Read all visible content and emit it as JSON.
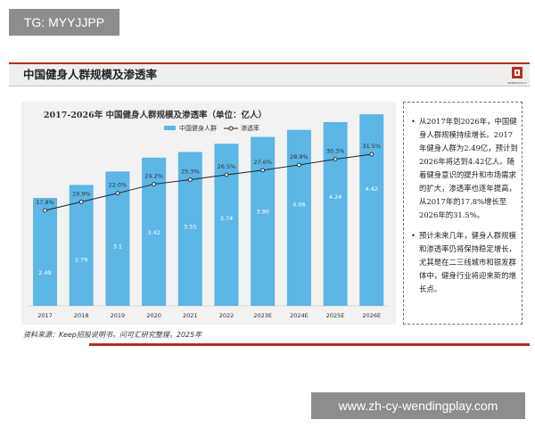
{
  "watermark_top": "TG: MYYJJPP",
  "watermark_bottom": "www.zh-cy-wendingplay.com",
  "header": {
    "title": "中国健身人群规模及渗透率"
  },
  "logo": {
    "icon": "company-logo-icon",
    "text": "WENDINGPLAY"
  },
  "colors": {
    "accent": "#b32f1f",
    "bar": "#5cb6e6",
    "line": "#222222",
    "panel": "#f2f2f2"
  },
  "chart_data": {
    "type": "bar",
    "title": "2017-2026年 中国健身人群规模及渗透率（单位：亿人）",
    "categories": [
      "2017",
      "2018",
      "2019",
      "2020",
      "2021",
      "2022",
      "2023E",
      "2024E",
      "2025E",
      "2026E"
    ],
    "series": [
      {
        "name": "中国健身人群",
        "type": "bar",
        "values": [
          2.49,
          2.79,
          3.1,
          3.42,
          3.55,
          3.74,
          3.9,
          4.06,
          4.24,
          4.42
        ],
        "labels": [
          "2.49",
          "2.79",
          "3.1",
          "3.42",
          "3.55",
          "3.74",
          "3.90",
          "4.06",
          "4.24",
          "4.42"
        ]
      },
      {
        "name": "渗透率",
        "type": "line",
        "values": [
          17.8,
          19.9,
          22.0,
          24.2,
          25.3,
          26.5,
          27.6,
          28.9,
          30.3,
          31.5
        ],
        "labels": [
          "17.8%",
          "19.9%",
          "22.0%",
          "24.2%",
          "25.3%",
          "26.5%",
          "27.6%",
          "28.9%",
          "30.3%",
          "31.5%"
        ]
      }
    ],
    "legend": "top-center",
    "grid": false
  },
  "side_notes": [
    "从2017年到2026年，中国健身人群规模持续增长。2017年健身人群为2.49亿，预计到2026年将达到4.42亿人。随着健身意识的提升和市场需求的扩大，渗透率也逐年提高，从2017年的17.8%增长至2026年的31.5%。",
    "预计未来几年，健身人群规模和渗透率仍将保持稳定增长，尤其是在二三线城市和银发群体中，健身行业将迎来新的增长点。"
  ],
  "source_note": "资料来源：Keep招股说明书，问可汇研究整理，2025年"
}
